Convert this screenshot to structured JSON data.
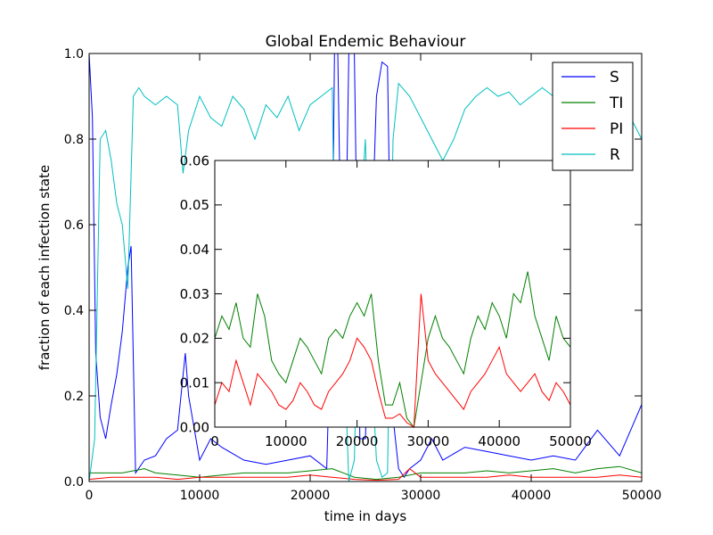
{
  "chart_data": [
    {
      "type": "line",
      "title": "Global Endemic Behaviour",
      "xlabel": "time in days",
      "ylabel": "fraction of each infection state",
      "xlim": [
        0,
        50000
      ],
      "ylim": [
        0,
        1.0
      ],
      "x_ticks": [
        "0",
        "10000",
        "20000",
        "30000",
        "40000",
        "50000"
      ],
      "y_ticks": [
        "0.0",
        "0.2",
        "0.4",
        "0.6",
        "0.8",
        "1.0"
      ],
      "grid": false,
      "legend": "top-right",
      "series": [
        {
          "name": "S",
          "color": "#0000ff",
          "x": [
            0,
            300,
            600,
            1000,
            1500,
            2000,
            2500,
            3000,
            3500,
            3800,
            4200,
            5000,
            6000,
            7000,
            8000,
            8700,
            9000,
            10000,
            11000,
            12000,
            14000,
            16000,
            18000,
            20000,
            21500,
            22000,
            22200,
            22500,
            23000,
            23500,
            24000,
            24500,
            25000,
            25500,
            26000,
            26500,
            27000,
            27500,
            28000,
            28500,
            29000,
            30000,
            31000,
            32000,
            34000,
            36000,
            38000,
            40000,
            42000,
            44000,
            46000,
            48000,
            49000,
            50000
          ],
          "y": [
            1.0,
            0.85,
            0.3,
            0.15,
            0.1,
            0.18,
            0.25,
            0.35,
            0.5,
            0.55,
            0.02,
            0.05,
            0.06,
            0.1,
            0.12,
            0.3,
            0.2,
            0.05,
            0.1,
            0.08,
            0.05,
            0.04,
            0.05,
            0.06,
            0.03,
            0.5,
            1.0,
            1.0,
            0.2,
            1.0,
            1.0,
            0.1,
            0.1,
            0.5,
            0.9,
            0.98,
            0.97,
            0.15,
            0.03,
            0.01,
            0.03,
            0.05,
            0.1,
            0.05,
            0.08,
            0.07,
            0.06,
            0.05,
            0.06,
            0.05,
            0.12,
            0.06,
            0.12,
            0.18
          ]
        },
        {
          "name": "TI",
          "color": "#008000",
          "x": [
            0,
            1000,
            2000,
            3000,
            4000,
            5000,
            6000,
            8000,
            10000,
            12000,
            14000,
            16000,
            18000,
            20000,
            22000,
            24000,
            26000,
            28000,
            30000,
            32000,
            34000,
            36000,
            38000,
            40000,
            42000,
            44000,
            46000,
            48000,
            50000
          ],
          "y": [
            0.02,
            0.02,
            0.02,
            0.02,
            0.025,
            0.03,
            0.02,
            0.015,
            0.01,
            0.015,
            0.02,
            0.02,
            0.02,
            0.025,
            0.03,
            0.01,
            0.005,
            0.01,
            0.02,
            0.02,
            0.02,
            0.025,
            0.02,
            0.025,
            0.03,
            0.02,
            0.03,
            0.035,
            0.02
          ]
        },
        {
          "name": "PI",
          "color": "#ff0000",
          "x": [
            0,
            2000,
            4000,
            6000,
            8000,
            10000,
            12000,
            14000,
            16000,
            18000,
            20000,
            22000,
            24000,
            26000,
            28000,
            29000,
            30000,
            32000,
            34000,
            36000,
            38000,
            40000,
            42000,
            44000,
            46000,
            48000,
            50000
          ],
          "y": [
            0.005,
            0.01,
            0.01,
            0.01,
            0.005,
            0.01,
            0.01,
            0.01,
            0.01,
            0.01,
            0.015,
            0.01,
            0.005,
            0.003,
            0.005,
            0.03,
            0.01,
            0.01,
            0.01,
            0.01,
            0.015,
            0.01,
            0.01,
            0.01,
            0.01,
            0.015,
            0.01
          ]
        },
        {
          "name": "R",
          "color": "#00bfbf",
          "x": [
            0,
            500,
            1000,
            1500,
            2000,
            2500,
            3000,
            3500,
            4000,
            4500,
            5000,
            6000,
            7000,
            8000,
            8500,
            9000,
            10000,
            11000,
            12000,
            13000,
            14000,
            15000,
            16000,
            17000,
            18000,
            19000,
            20000,
            21000,
            22000,
            22300,
            22800,
            23500,
            24000,
            24500,
            25000,
            25500,
            26000,
            26500,
            27000,
            27500,
            28000,
            29000,
            30000,
            31000,
            32000,
            33000,
            34000,
            35000,
            36000,
            37000,
            38000,
            39000,
            40000,
            41000,
            42000,
            43000,
            44000,
            45000,
            46000,
            47000,
            48000,
            49000,
            50000
          ],
          "y": [
            0.0,
            0.1,
            0.8,
            0.82,
            0.75,
            0.65,
            0.6,
            0.45,
            0.9,
            0.92,
            0.9,
            0.88,
            0.9,
            0.88,
            0.72,
            0.82,
            0.9,
            0.85,
            0.83,
            0.9,
            0.87,
            0.8,
            0.88,
            0.85,
            0.9,
            0.82,
            0.88,
            0.9,
            0.92,
            0.3,
            0.5,
            0.0,
            0.05,
            0.6,
            0.8,
            0.3,
            0.05,
            0.01,
            0.02,
            0.8,
            0.93,
            0.9,
            0.85,
            0.8,
            0.75,
            0.8,
            0.87,
            0.9,
            0.92,
            0.9,
            0.91,
            0.88,
            0.9,
            0.92,
            0.9,
            0.92,
            0.9,
            0.93,
            0.92,
            0.93,
            0.9,
            0.85,
            0.8
          ]
        }
      ]
    },
    {
      "type": "line",
      "title": "",
      "xlabel": "",
      "ylabel": "",
      "xlim": [
        0,
        50000
      ],
      "ylim": [
        0,
        0.06
      ],
      "x_ticks": [
        "0",
        "10000",
        "20000",
        "30000",
        "40000",
        "50000"
      ],
      "y_ticks": [
        "0.00",
        "0.01",
        "0.02",
        "0.03",
        "0.04",
        "0.05",
        "0.06"
      ],
      "grid": false,
      "legend": "none",
      "series": [
        {
          "color": "#008000",
          "x": [
            0,
            1000,
            2000,
            3000,
            4000,
            5000,
            6000,
            7000,
            8000,
            9000,
            10000,
            11000,
            12000,
            13000,
            14000,
            15000,
            16000,
            17000,
            18000,
            19000,
            20000,
            21000,
            22000,
            23000,
            24000,
            25000,
            26000,
            27000,
            28000,
            29000,
            30000,
            31000,
            32000,
            33000,
            34000,
            35000,
            36000,
            37000,
            38000,
            39000,
            40000,
            41000,
            42000,
            43000,
            44000,
            45000,
            46000,
            47000,
            48000,
            49000,
            50000
          ],
          "y": [
            0.02,
            0.025,
            0.022,
            0.028,
            0.02,
            0.018,
            0.03,
            0.025,
            0.015,
            0.012,
            0.01,
            0.015,
            0.02,
            0.018,
            0.015,
            0.012,
            0.02,
            0.022,
            0.02,
            0.025,
            0.028,
            0.025,
            0.03,
            0.015,
            0.005,
            0.005,
            0.01,
            0.002,
            0.0,
            0.01,
            0.02,
            0.025,
            0.02,
            0.018,
            0.015,
            0.012,
            0.02,
            0.025,
            0.022,
            0.028,
            0.025,
            0.02,
            0.03,
            0.028,
            0.035,
            0.025,
            0.02,
            0.015,
            0.025,
            0.02,
            0.018
          ]
        },
        {
          "color": "#ff0000",
          "x": [
            0,
            1000,
            2000,
            3000,
            4000,
            5000,
            6000,
            7000,
            8000,
            9000,
            10000,
            11000,
            12000,
            13000,
            14000,
            15000,
            16000,
            17000,
            18000,
            19000,
            20000,
            21000,
            22000,
            23000,
            24000,
            25000,
            26000,
            27000,
            28000,
            29000,
            30000,
            31000,
            32000,
            33000,
            34000,
            35000,
            36000,
            37000,
            38000,
            39000,
            40000,
            41000,
            42000,
            43000,
            44000,
            45000,
            46000,
            47000,
            48000,
            49000,
            50000
          ],
          "y": [
            0.005,
            0.01,
            0.008,
            0.015,
            0.01,
            0.005,
            0.012,
            0.01,
            0.008,
            0.005,
            0.004,
            0.006,
            0.01,
            0.008,
            0.005,
            0.004,
            0.008,
            0.01,
            0.012,
            0.015,
            0.02,
            0.018,
            0.015,
            0.008,
            0.002,
            0.002,
            0.003,
            0.001,
            0.0,
            0.03,
            0.015,
            0.012,
            0.01,
            0.008,
            0.006,
            0.004,
            0.008,
            0.01,
            0.012,
            0.015,
            0.018,
            0.012,
            0.01,
            0.008,
            0.01,
            0.012,
            0.008,
            0.006,
            0.01,
            0.008,
            0.005
          ]
        }
      ]
    }
  ]
}
